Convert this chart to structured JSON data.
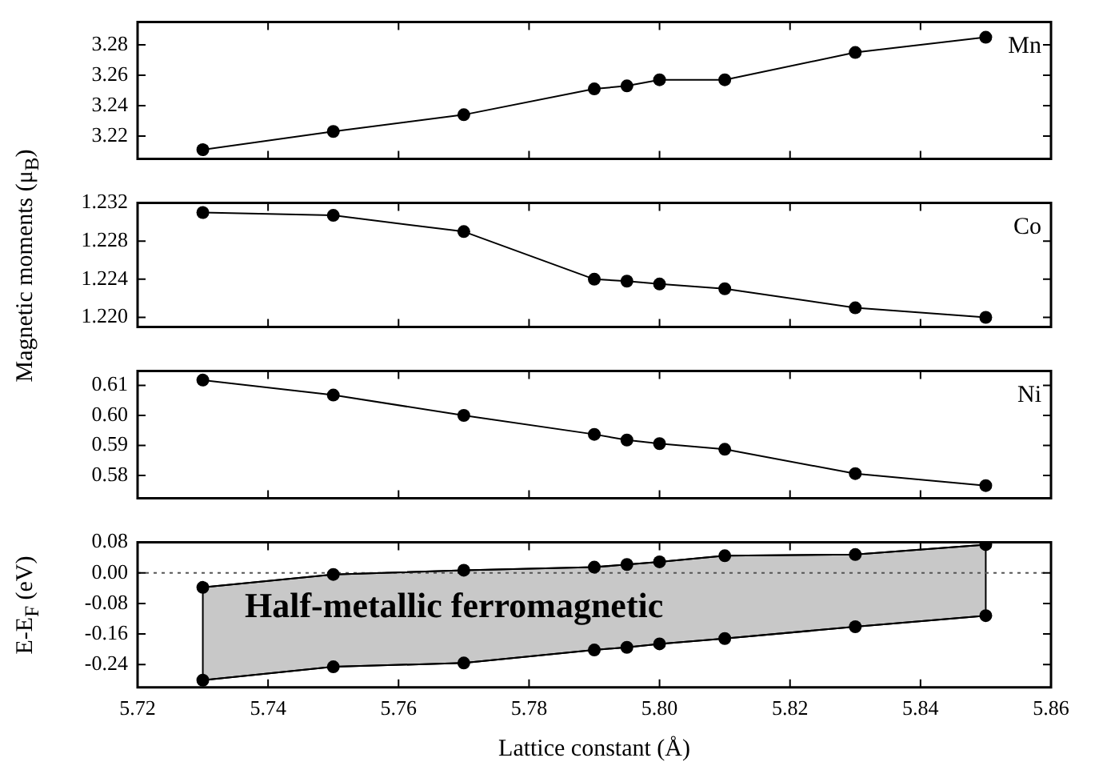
{
  "chart_data": [
    {
      "type": "line",
      "ylabel": "Magnetic moments (μ$_{B}$)",
      "annotations": [
        "Mn"
      ],
      "marker": "circle",
      "grid": false,
      "legend": false,
      "tick_labels": "y",
      "x": [
        5.73,
        5.75,
        5.77,
        5.79,
        5.795,
        5.8,
        5.81,
        5.83,
        5.85
      ],
      "xlim": [
        5.72,
        5.86
      ],
      "ylim": [
        3.205,
        3.295
      ],
      "yticks": [
        3.22,
        3.24,
        3.26,
        3.28
      ],
      "series": [
        {
          "color": "#000000",
          "values": [
            3.211,
            3.223,
            3.234,
            3.251,
            3.253,
            3.257,
            3.257,
            3.275,
            3.285
          ]
        }
      ]
    },
    {
      "type": "line",
      "annotations": [
        "Co"
      ],
      "marker": "circle",
      "grid": false,
      "legend": false,
      "tick_labels": "y",
      "x": [
        5.73,
        5.75,
        5.77,
        5.79,
        5.795,
        5.8,
        5.81,
        5.83,
        5.85
      ],
      "xlim": [
        5.72,
        5.86
      ],
      "ylim": [
        1.219,
        1.232
      ],
      "yticks": [
        {
          "value": 1.22,
          "label": "1.220"
        },
        1.224,
        1.228,
        1.232
      ],
      "series": [
        {
          "color": "#000000",
          "values": [
            1.231,
            1.2307,
            1.229,
            1.224,
            1.2238,
            1.2235,
            1.223,
            1.221,
            1.22
          ]
        }
      ]
    },
    {
      "type": "line",
      "annotations": [
        "Ni"
      ],
      "marker": "circle",
      "grid": false,
      "legend": false,
      "tick_labels": "y",
      "x": [
        5.73,
        5.75,
        5.77,
        5.79,
        5.795,
        5.8,
        5.81,
        5.83,
        5.85
      ],
      "xlim": [
        5.72,
        5.86
      ],
      "ylim": [
        0.5724,
        0.6148
      ],
      "yticks": [
        {
          "value": 0.58,
          "label": "0.58"
        },
        0.59,
        {
          "value": 0.6,
          "label": "0.60"
        },
        0.61
      ],
      "series": [
        {
          "color": "#000000",
          "values": [
            0.6118,
            0.6068,
            0.6,
            0.5937,
            0.5918,
            0.5906,
            0.5887,
            0.5806,
            0.5766
          ]
        }
      ]
    },
    {
      "type": "line",
      "ylabel": "E-E$_{F}$ (eV)",
      "xlabel": "Lattice constant (Å)",
      "annotations": [
        "Half-metallic ferromagnetic"
      ],
      "marker": "circle",
      "grid": false,
      "legend": false,
      "x": [
        5.73,
        5.75,
        5.77,
        5.79,
        5.795,
        5.8,
        5.81,
        5.83,
        5.85
      ],
      "xlim": [
        5.72,
        5.86
      ],
      "xticks": [
        5.72,
        5.74,
        5.76,
        5.78,
        {
          "value": 5.8,
          "label": "5.80"
        },
        5.82,
        5.84,
        5.86
      ],
      "ylim": [
        -0.3,
        0.08
      ],
      "yticks": [
        -0.24,
        -0.16,
        -0.08,
        {
          "value": 0,
          "label": "0.00"
        },
        0.08
      ],
      "ref_lines": [
        {
          "axis": "y",
          "value": 0,
          "line_style": "dotted"
        }
      ],
      "series": [
        {
          "color": "#000000",
          "values": [
            -0.038,
            -0.004,
            0.007,
            0.015,
            0.022,
            0.029,
            0.045,
            0.048,
            0.074
          ],
          "upper": [
            -0.038,
            -0.004,
            0.007,
            0.015,
            0.022,
            0.029,
            0.045,
            0.048,
            0.074
          ],
          "lower": [
            -0.281,
            -0.246,
            -0.236,
            -0.202,
            -0.195,
            -0.186,
            -0.172,
            -0.141,
            -0.112
          ]
        },
        {
          "color": "#000000",
          "values": [
            -0.281,
            -0.246,
            -0.236,
            -0.202,
            -0.195,
            -0.186,
            -0.172,
            -0.141,
            -0.112
          ]
        }
      ]
    }
  ]
}
